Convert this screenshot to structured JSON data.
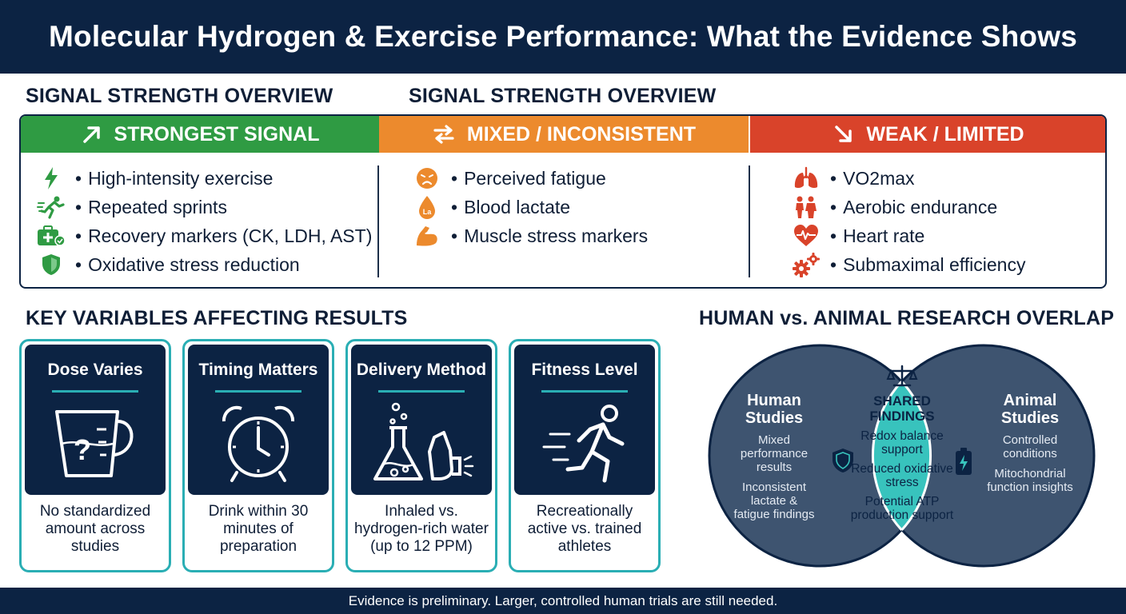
{
  "title": "Molecular Hydrogen & Exercise Performance: What the Evidence Shows",
  "signal_section": {
    "title_left": "SIGNAL STRENGTH OVERVIEW",
    "title_right": "SIGNAL STRENGTH OVERVIEW",
    "columns": [
      {
        "heading": "STRONGEST SIGNAL",
        "color": "#2f9b43",
        "items": [
          {
            "icon": "lightning-icon",
            "label": "High-intensity exercise"
          },
          {
            "icon": "sprinter-icon",
            "label": "Repeated sprints"
          },
          {
            "icon": "medical-kit-icon",
            "label": "Recovery markers (CK, LDH, AST)"
          },
          {
            "icon": "shield-icon",
            "label": "Oxidative stress reduction"
          }
        ]
      },
      {
        "heading": "MIXED / INCONSISTENT",
        "color": "#ec8a2d",
        "items": [
          {
            "icon": "tired-face-icon",
            "label": "Perceived fatigue"
          },
          {
            "icon": "lactate-drop-icon",
            "label": "Blood lactate",
            "icon_text": "La"
          },
          {
            "icon": "muscle-arm-icon",
            "label": "Muscle stress markers"
          }
        ]
      },
      {
        "heading": "WEAK / LIMITED",
        "color": "#d9432a",
        "items": [
          {
            "icon": "lungs-icon",
            "label": "VO2max"
          },
          {
            "icon": "endurance-icon",
            "label": "Aerobic endurance"
          },
          {
            "icon": "heart-rate-icon",
            "label": "Heart rate"
          },
          {
            "icon": "gears-icon",
            "label": "Submaximal efficiency"
          }
        ]
      }
    ]
  },
  "variables_section": {
    "title": "KEY VARIABLES AFFECTING RESULTS",
    "cards": [
      {
        "title": "Dose Varies",
        "icon": "measuring-cup-icon",
        "icon_text": "?",
        "desc": "No standardized amount across studies"
      },
      {
        "title": "Timing Matters",
        "icon": "alarm-clock-icon",
        "desc": "Drink within 30 minutes of preparation"
      },
      {
        "title": "Delivery Method",
        "icon": "flask-inhaler-icon",
        "desc": "Inhaled vs. hydrogen-rich water (up to 12 PPM)"
      },
      {
        "title": "Fitness Level",
        "icon": "runner-icon",
        "desc": "Recreationally active vs. trained athletes"
      }
    ]
  },
  "venn_section": {
    "title": "HUMAN vs. ANIMAL RESEARCH OVERLAP",
    "human": {
      "title": "Human Studies",
      "items": [
        "Mixed performance results",
        "Inconsistent lactate & fatigue findings"
      ]
    },
    "shared": {
      "title": "SHARED FINDINGS",
      "items": [
        "Redox balance support",
        "Reduced oxidative stress",
        "Potential ATP production support"
      ]
    },
    "animal": {
      "title": "Animal Studies",
      "items": [
        "Controlled conditions",
        "Mitochondrial function insights"
      ]
    },
    "colors": {
      "human": "#3e5470",
      "animal": "#3e5470",
      "shared": "#38c3bd",
      "outline": "#0c2343"
    }
  },
  "footer": "Evidence is preliminary. Larger, controlled human trials are still needed."
}
